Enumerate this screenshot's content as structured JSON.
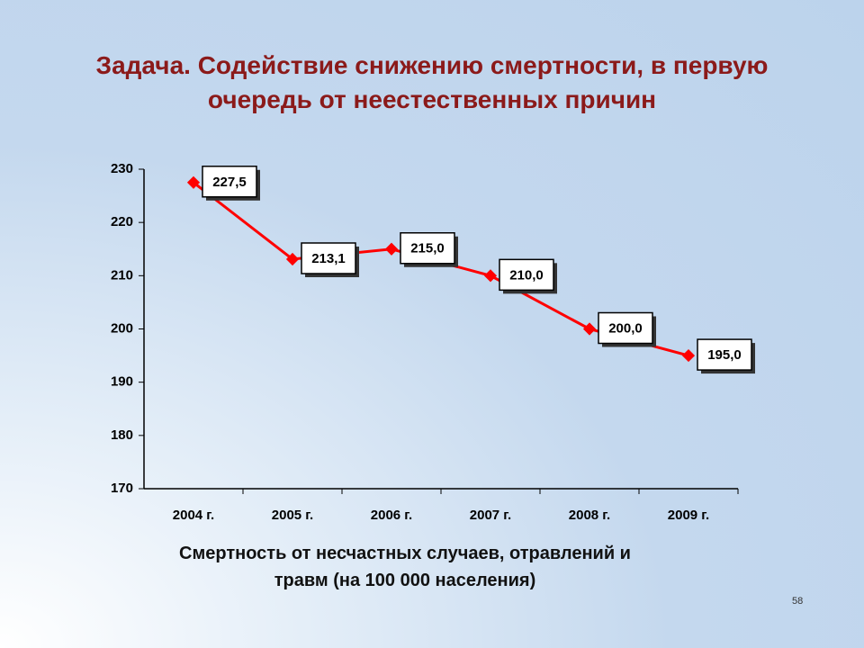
{
  "header": {
    "title": "Задача. Содействие снижению смертности, в первую очередь от неестественных причин"
  },
  "chart_data": {
    "type": "line",
    "categories": [
      "2004 г.",
      "2005 г.",
      "2006 г.",
      "2007 г.",
      "2008 г.",
      "2009 г."
    ],
    "values": [
      227.5,
      213.1,
      215.0,
      210.0,
      200.0,
      195.0
    ],
    "value_labels": [
      "227,5",
      "213,1",
      "215,0",
      "210,0",
      "200,0",
      "195,0"
    ],
    "color": "#ff0000",
    "ylim": [
      170,
      230
    ],
    "yticks": [
      170,
      180,
      190,
      200,
      210,
      220,
      230
    ],
    "grid": false,
    "x_label": "Смертность от несчастных случаев, отравлений и травм (на 100 000 населения)"
  },
  "footer": {
    "page_number": "58"
  }
}
